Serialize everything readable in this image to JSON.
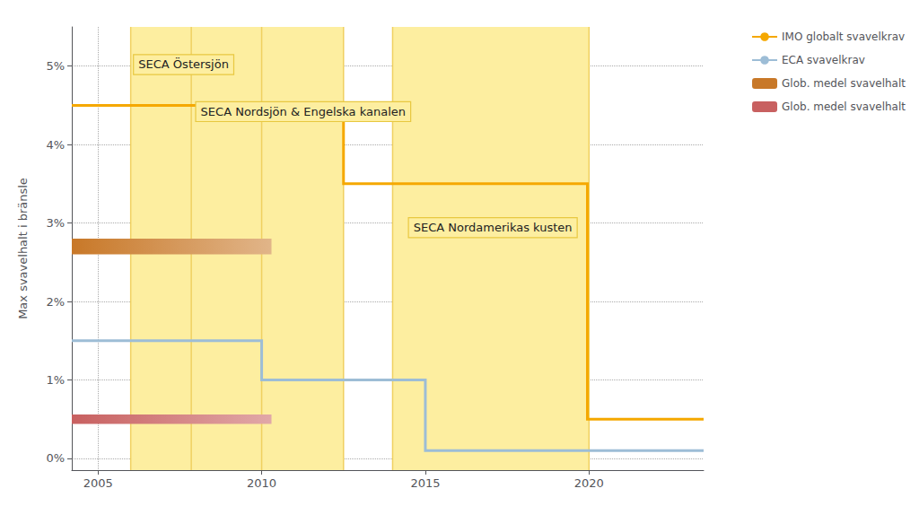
{
  "chart_data": {
    "type": "line",
    "ylabel": "Max svavelhalt i bränsle",
    "xlim": [
      2004.2,
      2023.5
    ],
    "xticks": [
      2005,
      2010,
      2015,
      2020
    ],
    "ylim": [
      -0.15,
      5.5
    ],
    "yticks": [
      {
        "value": 0,
        "label": "0%"
      },
      {
        "value": 1,
        "label": "1%"
      },
      {
        "value": 2,
        "label": "2%"
      },
      {
        "value": 3,
        "label": "3%"
      },
      {
        "value": 4,
        "label": "4%"
      },
      {
        "value": 5,
        "label": "5%"
      }
    ],
    "grid": true,
    "legend": "upper right",
    "series": [
      {
        "name": "IMO globalt svavelkrav",
        "type": "line",
        "color": "#f5a800",
        "x": [
          2004.2,
          2012.5,
          2012.5,
          2019.95,
          2019.95,
          2023.5
        ],
        "values": [
          4.5,
          4.5,
          3.5,
          3.5,
          0.5,
          0.5
        ]
      },
      {
        "name": "ECA svavelkrav",
        "type": "line",
        "color": "#9dbdd6",
        "x": [
          2004.2,
          2010.0,
          2010.0,
          2015.0,
          2015.0,
          2023.5
        ],
        "values": [
          1.5,
          1.5,
          1.0,
          1.0,
          0.1,
          0.1
        ]
      },
      {
        "name": "Glob. medel svavelhalt",
        "type": "band",
        "color": "#c87828",
        "x_range": [
          2004.2,
          2010.3
        ],
        "y_range": [
          2.6,
          2.8
        ]
      },
      {
        "name": "Glob. medel svavelhalt",
        "type": "band",
        "color": "#c86060",
        "x_range": [
          2004.2,
          2010.3
        ],
        "y_range": [
          0.44,
          0.56
        ]
      }
    ],
    "seca_bands": {
      "color": "#fdeea0",
      "ranges": [
        [
          2006.0,
          2007.85
        ],
        [
          2007.85,
          2012.5
        ],
        [
          2014.0,
          2020.0
        ]
      ]
    },
    "seca_lines": {
      "color": "#f0d060",
      "x": [
        2006.0,
        2007.85,
        2010.0,
        2012.5,
        2014.0,
        2020.0
      ]
    },
    "annotations": [
      {
        "text": "SECA Östersjön",
        "x": 2006.1,
        "y": 4.9
      },
      {
        "text": "SECA Nordsjön & Engelska kanalen",
        "x": 2008.0,
        "y": 4.3
      },
      {
        "text": "SECA Nordamerikas kusten",
        "x": 2014.5,
        "y": 2.82
      }
    ]
  }
}
